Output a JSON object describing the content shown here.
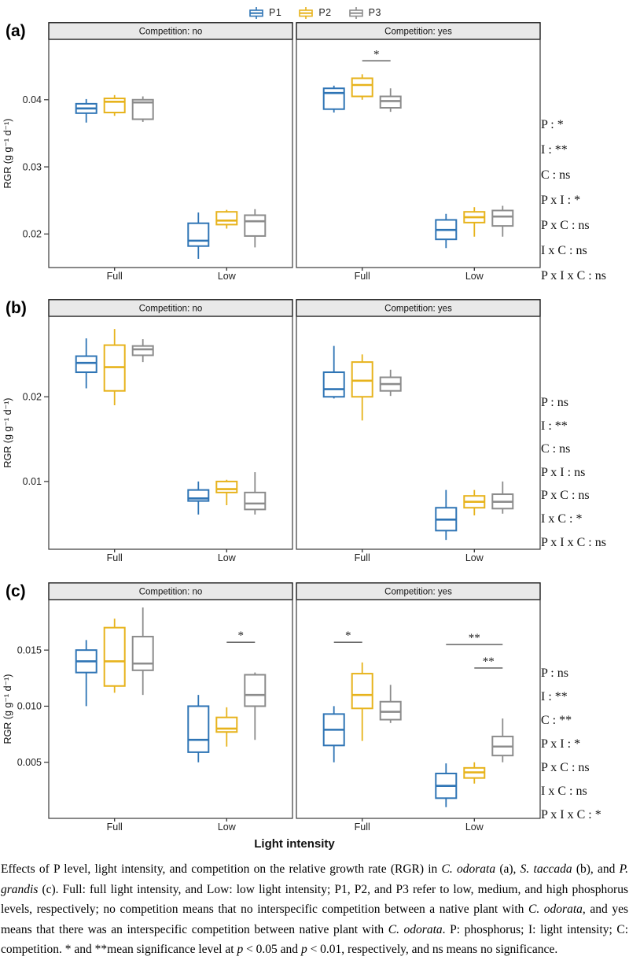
{
  "legend": {
    "items": [
      {
        "label": "P1",
        "color": "#2e74b5"
      },
      {
        "label": "P2",
        "color": "#e7b31c"
      },
      {
        "label": "P3",
        "color": "#8c8c8c"
      }
    ]
  },
  "xlabel": "Light intensity",
  "x_categories": [
    "Full",
    "Low"
  ],
  "chart_data": [
    {
      "type": "boxplot",
      "panel": "(a)",
      "ylabel": "RGR (g g⁻¹ d⁻¹)",
      "ylim": [
        0.015,
        0.049
      ],
      "yticks": [
        0.02,
        0.03,
        0.04
      ],
      "ytick_labels": [
        "0.02",
        "0.03",
        "0.04"
      ],
      "facets": [
        {
          "label": "Competition: no",
          "groups": [
            {
              "category": "Full",
              "boxes": [
                {
                  "series": "P1",
                  "low": 0.0366,
                  "q1": 0.038,
                  "median": 0.0387,
                  "q3": 0.0394,
                  "high": 0.0401
                },
                {
                  "series": "P2",
                  "low": 0.0376,
                  "q1": 0.0381,
                  "median": 0.0397,
                  "q3": 0.0402,
                  "high": 0.0407
                },
                {
                  "series": "P3",
                  "low": 0.0367,
                  "q1": 0.0371,
                  "median": 0.0396,
                  "q3": 0.04,
                  "high": 0.0405
                }
              ]
            },
            {
              "category": "Low",
              "boxes": [
                {
                  "series": "P1",
                  "low": 0.0163,
                  "q1": 0.0182,
                  "median": 0.019,
                  "q3": 0.0216,
                  "high": 0.0232
                },
                {
                  "series": "P2",
                  "low": 0.0208,
                  "q1": 0.0214,
                  "median": 0.022,
                  "q3": 0.0233,
                  "high": 0.0236
                },
                {
                  "series": "P3",
                  "low": 0.018,
                  "q1": 0.0197,
                  "median": 0.0219,
                  "q3": 0.0228,
                  "high": 0.0237
                }
              ]
            }
          ],
          "sig_bars": []
        },
        {
          "label": "Competition: yes",
          "groups": [
            {
              "category": "Full",
              "boxes": [
                {
                  "series": "P1",
                  "low": 0.0381,
                  "q1": 0.0386,
                  "median": 0.041,
                  "q3": 0.0417,
                  "high": 0.0421
                },
                {
                  "series": "P2",
                  "low": 0.04,
                  "q1": 0.0405,
                  "median": 0.0422,
                  "q3": 0.0432,
                  "high": 0.0438
                },
                {
                  "series": "P3",
                  "low": 0.0382,
                  "q1": 0.0388,
                  "median": 0.0398,
                  "q3": 0.0405,
                  "high": 0.0417
                }
              ]
            },
            {
              "category": "Low",
              "boxes": [
                {
                  "series": "P1",
                  "low": 0.0179,
                  "q1": 0.0192,
                  "median": 0.0206,
                  "q3": 0.0221,
                  "high": 0.023
                },
                {
                  "series": "P2",
                  "low": 0.0196,
                  "q1": 0.0217,
                  "median": 0.0225,
                  "q3": 0.0233,
                  "high": 0.024
                },
                {
                  "series": "P3",
                  "low": 0.0196,
                  "q1": 0.0212,
                  "median": 0.0226,
                  "q3": 0.0235,
                  "high": 0.0242
                }
              ]
            }
          ],
          "sig_bars": [
            {
              "category": "Full",
              "from": "P2",
              "to": "P3",
              "y": 0.0458,
              "label": "*"
            }
          ]
        }
      ],
      "annotations": [
        "P : *",
        "I : **",
        "C : ns",
        "P x I : *",
        "P x C : ns",
        "I x C : ns",
        "P x I x C : ns"
      ]
    },
    {
      "type": "boxplot",
      "panel": "(b)",
      "ylabel": "RGR (g g⁻¹ d⁻¹)",
      "ylim": [
        0.002,
        0.0295
      ],
      "yticks": [
        0.01,
        0.02
      ],
      "ytick_labels": [
        "0.01",
        "0.02"
      ],
      "facets": [
        {
          "label": "Competition: no",
          "groups": [
            {
              "category": "Full",
              "boxes": [
                {
                  "series": "P1",
                  "low": 0.021,
                  "q1": 0.0229,
                  "median": 0.024,
                  "q3": 0.0248,
                  "high": 0.0269
                },
                {
                  "series": "P2",
                  "low": 0.019,
                  "q1": 0.0207,
                  "median": 0.0235,
                  "q3": 0.0261,
                  "high": 0.028
                },
                {
                  "series": "P3",
                  "low": 0.0241,
                  "q1": 0.0249,
                  "median": 0.0256,
                  "q3": 0.026,
                  "high": 0.0268
                }
              ]
            },
            {
              "category": "Low",
              "boxes": [
                {
                  "series": "P1",
                  "low": 0.0061,
                  "q1": 0.0077,
                  "median": 0.008,
                  "q3": 0.009,
                  "high": 0.01
                },
                {
                  "series": "P2",
                  "low": 0.0072,
                  "q1": 0.0087,
                  "median": 0.0091,
                  "q3": 0.01,
                  "high": 0.0102
                },
                {
                  "series": "P3",
                  "low": 0.0061,
                  "q1": 0.0067,
                  "median": 0.0074,
                  "q3": 0.0087,
                  "high": 0.0111
                }
              ]
            }
          ],
          "sig_bars": []
        },
        {
          "label": "Competition: yes",
          "groups": [
            {
              "category": "Full",
              "boxes": [
                {
                  "series": "P1",
                  "low": 0.0198,
                  "q1": 0.02,
                  "median": 0.0209,
                  "q3": 0.0229,
                  "high": 0.026
                },
                {
                  "series": "P2",
                  "low": 0.0172,
                  "q1": 0.02,
                  "median": 0.0219,
                  "q3": 0.0241,
                  "high": 0.025
                },
                {
                  "series": "P3",
                  "low": 0.0201,
                  "q1": 0.0207,
                  "median": 0.0215,
                  "q3": 0.0223,
                  "high": 0.0232
                }
              ]
            },
            {
              "category": "Low",
              "boxes": [
                {
                  "series": "P1",
                  "low": 0.0031,
                  "q1": 0.0042,
                  "median": 0.0055,
                  "q3": 0.0069,
                  "high": 0.009
                },
                {
                  "series": "P2",
                  "low": 0.006,
                  "q1": 0.0069,
                  "median": 0.0076,
                  "q3": 0.0083,
                  "high": 0.009
                },
                {
                  "series": "P3",
                  "low": 0.0062,
                  "q1": 0.0068,
                  "median": 0.0076,
                  "q3": 0.0085,
                  "high": 0.01
                }
              ]
            }
          ],
          "sig_bars": []
        }
      ],
      "annotations": [
        "P : ns",
        "I : **",
        "C : ns",
        "P x I : ns",
        "P x C : ns",
        "I x C : *",
        "P x I x C : ns"
      ]
    },
    {
      "type": "boxplot",
      "panel": "(c)",
      "ylabel": "RGR (g g⁻¹ d⁻¹)",
      "ylim": [
        0.0,
        0.0195
      ],
      "yticks": [
        0.005,
        0.01,
        0.015
      ],
      "ytick_labels": [
        "0.005",
        "0.010",
        "0.015"
      ],
      "facets": [
        {
          "label": "Competition: no",
          "groups": [
            {
              "category": "Full",
              "boxes": [
                {
                  "series": "P1",
                  "low": 0.01,
                  "q1": 0.013,
                  "median": 0.014,
                  "q3": 0.015,
                  "high": 0.0159
                },
                {
                  "series": "P2",
                  "low": 0.0112,
                  "q1": 0.0118,
                  "median": 0.014,
                  "q3": 0.017,
                  "high": 0.0178
                },
                {
                  "series": "P3",
                  "low": 0.011,
                  "q1": 0.0132,
                  "median": 0.0138,
                  "q3": 0.0162,
                  "high": 0.0188
                }
              ]
            },
            {
              "category": "Low",
              "boxes": [
                {
                  "series": "P1",
                  "low": 0.005,
                  "q1": 0.0059,
                  "median": 0.007,
                  "q3": 0.01,
                  "high": 0.011
                },
                {
                  "series": "P2",
                  "low": 0.0064,
                  "q1": 0.0077,
                  "median": 0.008,
                  "q3": 0.009,
                  "high": 0.0099
                },
                {
                  "series": "P3",
                  "low": 0.007,
                  "q1": 0.01,
                  "median": 0.011,
                  "q3": 0.0128,
                  "high": 0.013
                }
              ]
            }
          ],
          "sig_bars": [
            {
              "category": "Low",
              "from": "P2",
              "to": "P3",
              "y": 0.0157,
              "label": "*"
            }
          ]
        },
        {
          "label": "Competition: yes",
          "groups": [
            {
              "category": "Full",
              "boxes": [
                {
                  "series": "P1",
                  "low": 0.005,
                  "q1": 0.0065,
                  "median": 0.0079,
                  "q3": 0.0093,
                  "high": 0.01
                },
                {
                  "series": "P2",
                  "low": 0.0069,
                  "q1": 0.0098,
                  "median": 0.011,
                  "q3": 0.0129,
                  "high": 0.0139
                },
                {
                  "series": "P3",
                  "low": 0.0085,
                  "q1": 0.0088,
                  "median": 0.0095,
                  "q3": 0.0104,
                  "high": 0.0119
                }
              ]
            },
            {
              "category": "Low",
              "boxes": [
                {
                  "series": "P1",
                  "low": 0.001,
                  "q1": 0.0018,
                  "median": 0.0029,
                  "q3": 0.004,
                  "high": 0.0049
                },
                {
                  "series": "P2",
                  "low": 0.0031,
                  "q1": 0.0036,
                  "median": 0.0041,
                  "q3": 0.0045,
                  "high": 0.005
                },
                {
                  "series": "P3",
                  "low": 0.005,
                  "q1": 0.0056,
                  "median": 0.0064,
                  "q3": 0.0073,
                  "high": 0.0089
                }
              ]
            }
          ],
          "sig_bars": [
            {
              "category": "Full",
              "from": "P1",
              "to": "P2",
              "y": 0.0157,
              "label": "*"
            },
            {
              "category": "Low",
              "from": "P1",
              "to": "P3",
              "y": 0.0155,
              "label": "**"
            },
            {
              "category": "Low",
              "from": "P2",
              "to": "P3",
              "y": 0.0134,
              "label": "**"
            }
          ]
        }
      ],
      "annotations": [
        "P : ns",
        "I : **",
        "C : **",
        "P x I : *",
        "P x C : ns",
        "I x C : ns",
        "P x I x C : *"
      ]
    }
  ],
  "caption": [
    {
      "text": "Effects of P level, light intensity, and competition on the relative growth rate (RGR) in "
    },
    {
      "text": "C. odorata",
      "italic": true
    },
    {
      "text": " (a), "
    },
    {
      "text": "S. taccada",
      "italic": true
    },
    {
      "text": " (b), and "
    },
    {
      "text": "P. grandis",
      "italic": true
    },
    {
      "text": " (c). Full: full light intensity, and Low: low light intensity; P1, P2, and P3 refer to low, medium, and high phosphorus levels, respectively; no competition means that no interspecific competition between a native plant with "
    },
    {
      "text": "C. odorata",
      "italic": true
    },
    {
      "text": ", and yes means that there was an interspecific competition between native plant with "
    },
    {
      "text": "C. odorata",
      "italic": true
    },
    {
      "text": ". P: phosphorus; I: light intensity; C: competition. * and **mean significance level at "
    },
    {
      "text": "p",
      "italic": true
    },
    {
      "text": " < 0.05 and "
    },
    {
      "text": "p",
      "italic": true
    },
    {
      "text": " < 0.01, respectively, and ns means no significance."
    }
  ]
}
